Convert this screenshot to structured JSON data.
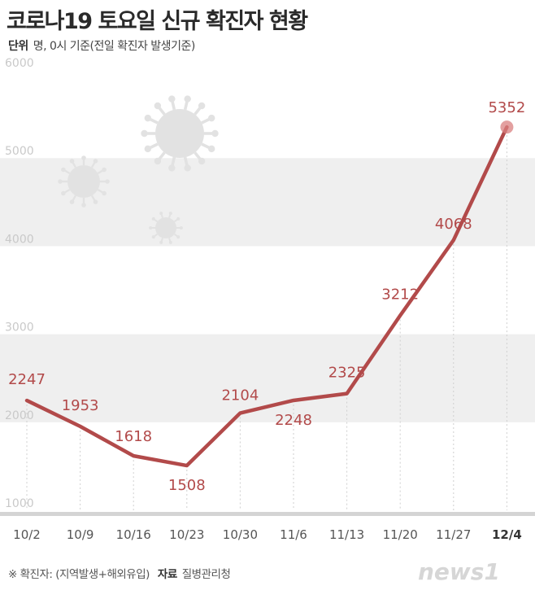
{
  "header": {
    "title": "코로나19 토요일 신규 확진자 현황",
    "unit_label": "단위",
    "unit_text": "명, 0시 기준(전일 확진자 발생기준)"
  },
  "chart_data": {
    "type": "line",
    "title": "코로나19 토요일 신규 확진자 현황",
    "categories": [
      "10/2",
      "10/9",
      "10/16",
      "10/23",
      "10/30",
      "11/6",
      "11/13",
      "11/20",
      "11/27",
      "12/4"
    ],
    "values": [
      2247,
      1953,
      1618,
      1508,
      2104,
      2248,
      2325,
      3212,
      4068,
      5352
    ],
    "yticks": [
      1000,
      2000,
      3000,
      4000,
      5000,
      6000
    ],
    "ylim": [
      1000,
      6000
    ],
    "grid": true,
    "band_color_alt": "#efefef",
    "line_color": "#b24a4a",
    "highlight_color": "#d98080"
  },
  "footer": {
    "note": "※ 확진자: (지역발생+해외유입)",
    "source_label": "자료",
    "source": "질병관리청"
  },
  "brand": {
    "logo_text": "news1",
    "logo_icon": "news1-logo-icon"
  }
}
